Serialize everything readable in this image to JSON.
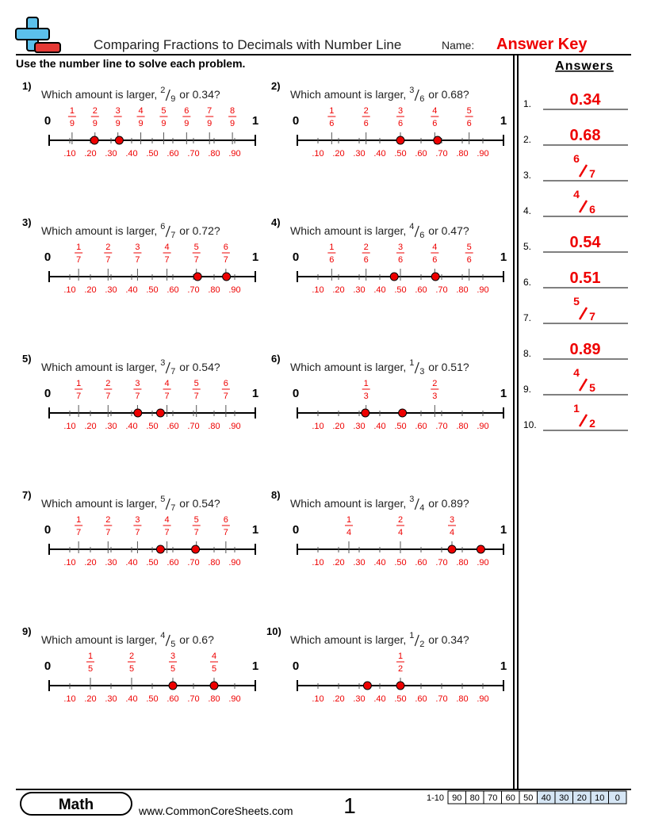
{
  "header": {
    "title": "Comparing Fractions to Decimals with Number Line",
    "name_label": "Name:",
    "answer_key": "Answer Key"
  },
  "instructions": "Use the number line to solve each problem.",
  "number_line": {
    "start": "0",
    "end": "1",
    "decimals": [
      ".10",
      ".20",
      ".30",
      ".40",
      ".50",
      ".60",
      ".70",
      ".80",
      ".90"
    ]
  },
  "problems": [
    {
      "number": "1)",
      "prefix": "Which amount is larger,",
      "numerator": "2",
      "denominator": "9",
      "suffix": "or 0.34?",
      "ticks": [
        [
          "1",
          "9"
        ],
        [
          "2",
          "9"
        ],
        [
          "3",
          "9"
        ],
        [
          "4",
          "9"
        ],
        [
          "5",
          "9"
        ],
        [
          "6",
          "9"
        ],
        [
          "7",
          "9"
        ],
        [
          "8",
          "9"
        ]
      ],
      "points": [
        0.22,
        0.34
      ]
    },
    {
      "number": "2)",
      "prefix": "Which amount is larger,",
      "numerator": "3",
      "denominator": "6",
      "suffix": "or 0.68?",
      "ticks": [
        [
          "1",
          "6"
        ],
        [
          "2",
          "6"
        ],
        [
          "3",
          "6"
        ],
        [
          "4",
          "6"
        ],
        [
          "5",
          "6"
        ]
      ],
      "points": [
        0.5,
        0.68
      ]
    },
    {
      "number": "3)",
      "prefix": "Which amount is larger,",
      "numerator": "6",
      "denominator": "7",
      "suffix": "or 0.72?",
      "ticks": [
        [
          "1",
          "7"
        ],
        [
          "2",
          "7"
        ],
        [
          "3",
          "7"
        ],
        [
          "4",
          "7"
        ],
        [
          "5",
          "7"
        ],
        [
          "6",
          "7"
        ]
      ],
      "points": [
        0.86,
        0.72
      ]
    },
    {
      "number": "4)",
      "prefix": "Which amount is larger,",
      "numerator": "4",
      "denominator": "6",
      "suffix": "or 0.47?",
      "ticks": [
        [
          "1",
          "6"
        ],
        [
          "2",
          "6"
        ],
        [
          "3",
          "6"
        ],
        [
          "4",
          "6"
        ],
        [
          "5",
          "6"
        ]
      ],
      "points": [
        0.67,
        0.47
      ]
    },
    {
      "number": "5)",
      "prefix": "Which amount is larger,",
      "numerator": "3",
      "denominator": "7",
      "suffix": "or 0.54?",
      "ticks": [
        [
          "1",
          "7"
        ],
        [
          "2",
          "7"
        ],
        [
          "3",
          "7"
        ],
        [
          "4",
          "7"
        ],
        [
          "5",
          "7"
        ],
        [
          "6",
          "7"
        ]
      ],
      "points": [
        0.43,
        0.54
      ]
    },
    {
      "number": "6)",
      "prefix": "Which amount is larger,",
      "numerator": "1",
      "denominator": "3",
      "suffix": "or 0.51?",
      "ticks": [
        [
          "1",
          "3"
        ],
        [
          "2",
          "3"
        ]
      ],
      "points": [
        0.33,
        0.51
      ]
    },
    {
      "number": "7)",
      "prefix": "Which amount is larger,",
      "numerator": "5",
      "denominator": "7",
      "suffix": "or 0.54?",
      "ticks": [
        [
          "1",
          "7"
        ],
        [
          "2",
          "7"
        ],
        [
          "3",
          "7"
        ],
        [
          "4",
          "7"
        ],
        [
          "5",
          "7"
        ],
        [
          "6",
          "7"
        ]
      ],
      "points": [
        0.71,
        0.54
      ]
    },
    {
      "number": "8)",
      "prefix": "Which amount is larger,",
      "numerator": "3",
      "denominator": "4",
      "suffix": "or 0.89?",
      "ticks": [
        [
          "1",
          "4"
        ],
        [
          "2",
          "4"
        ],
        [
          "3",
          "4"
        ]
      ],
      "points": [
        0.75,
        0.89
      ]
    },
    {
      "number": "9)",
      "prefix": "Which amount is larger,",
      "numerator": "4",
      "denominator": "5",
      "suffix": "or 0.6?",
      "ticks": [
        [
          "1",
          "5"
        ],
        [
          "2",
          "5"
        ],
        [
          "3",
          "5"
        ],
        [
          "4",
          "5"
        ]
      ],
      "points": [
        0.8,
        0.6
      ]
    },
    {
      "number": "10)",
      "prefix": "Which amount is larger,",
      "numerator": "1",
      "denominator": "2",
      "suffix": "or 0.34?",
      "ticks": [
        [
          "1",
          "2"
        ]
      ],
      "points": [
        0.5,
        0.34
      ]
    }
  ],
  "answers": {
    "title": "Answers",
    "items": [
      {
        "number": "1.",
        "text": "0.34"
      },
      {
        "number": "2.",
        "text": "0.68"
      },
      {
        "number": "3.",
        "numerator": "6",
        "denominator": "7"
      },
      {
        "number": "4.",
        "numerator": "4",
        "denominator": "6"
      },
      {
        "number": "5.",
        "text": "0.54"
      },
      {
        "number": "6.",
        "text": "0.51"
      },
      {
        "number": "7.",
        "numerator": "5",
        "denominator": "7"
      },
      {
        "number": "8.",
        "text": "0.89"
      },
      {
        "number": "9.",
        "numerator": "4",
        "denominator": "5"
      },
      {
        "number": "10.",
        "numerator": "1",
        "denominator": "2"
      }
    ]
  },
  "footer": {
    "subject": "Math",
    "website": "www.CommonCoreSheets.com",
    "page": "1",
    "score_label": "1-10",
    "scores": [
      "90",
      "80",
      "70",
      "60",
      "50",
      "40",
      "30",
      "20",
      "10",
      "0"
    ]
  }
}
